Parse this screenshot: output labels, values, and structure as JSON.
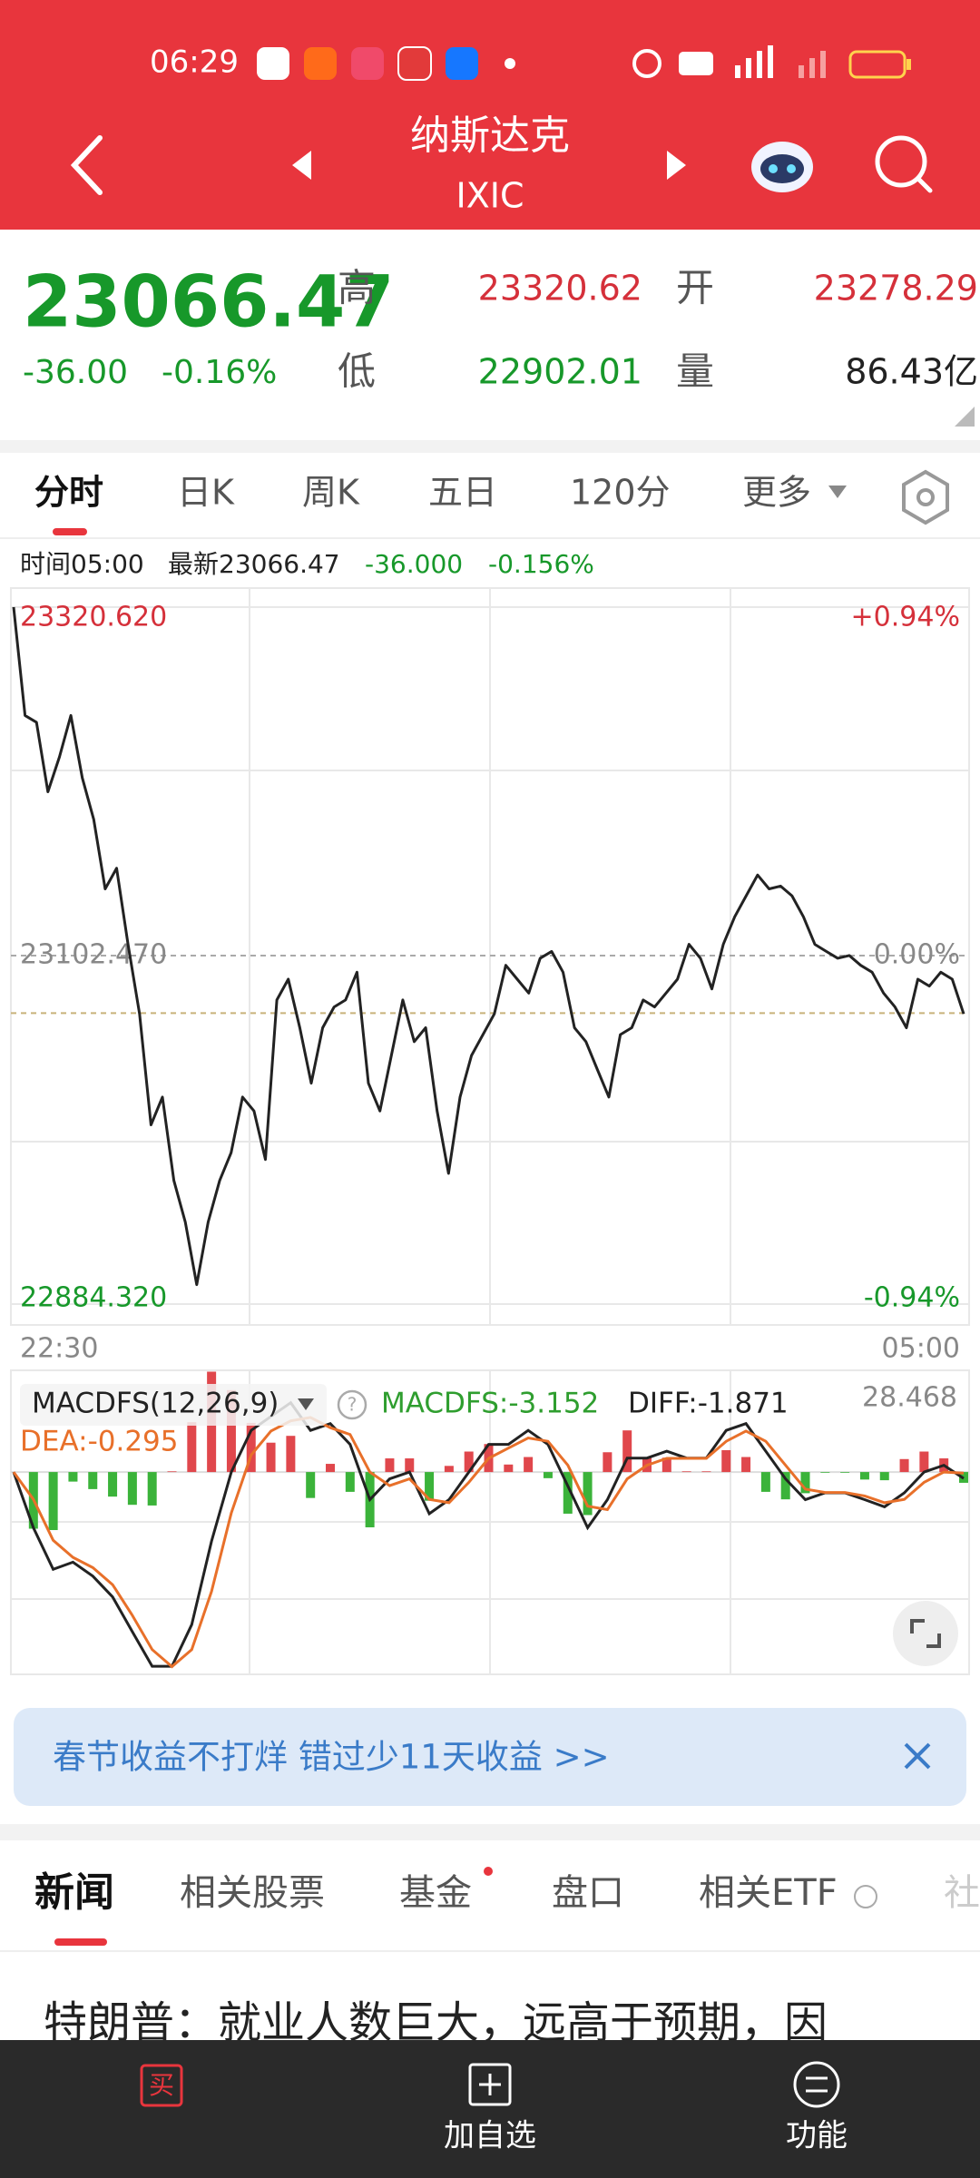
{
  "status_bar": {
    "time": "06:29"
  },
  "header": {
    "title": "纳斯达克",
    "subtitle": "IXIC"
  },
  "quote": {
    "price": "23066.47",
    "change": "-36.00",
    "change_pct": "-0.16%",
    "high_label": "高",
    "high": "23320.62",
    "open_label": "开",
    "open": "23278.29",
    "low_label": "低",
    "low": "22902.01",
    "volume_label": "量",
    "volume": "86.43亿"
  },
  "tabs": [
    "分时",
    "日K",
    "周K",
    "五日",
    "120分",
    "更多"
  ],
  "info": {
    "time": "时间05:00",
    "latest": "最新23066.47",
    "change": "-36.000",
    "change_pct": "-0.156%"
  },
  "chart_data": [
    {
      "type": "line",
      "color": "#222222",
      "ylim": [
        22884.32,
        23320.62
      ],
      "yticks": [
        {
          "value": 22884.32,
          "label": "22884.320"
        },
        {
          "value": 23102.47,
          "label": "23102.470"
        },
        {
          "value": 23320.62,
          "label": "23320.620"
        }
      ],
      "pct_labels": [
        "-0.94%",
        "0.00%",
        "+0.94%"
      ],
      "x_labels": [
        "22:30",
        "05:00"
      ],
      "values": [
        23320.6,
        23252.8,
        23248.5,
        23205.0,
        23226.8,
        23252.8,
        23213.7,
        23187.7,
        23144.2,
        23157.2,
        23109.5,
        23066.0,
        22996.5,
        23013.9,
        22961.7,
        22935.7,
        22896.5,
        22935.7,
        22961.7,
        22979.1,
        23013.9,
        23005.2,
        22974.8,
        23074.7,
        23087.7,
        23057.3,
        23022.6,
        23057.3,
        23070.3,
        23074.7,
        23092.1,
        23022.6,
        23005.2,
        23039.9,
        23074.7,
        23048.6,
        23057.3,
        23005.2,
        22966.1,
        23013.9,
        23039.9,
        23053.0,
        23066.0,
        23096.4,
        23087.7,
        23079.0,
        23100.8,
        23105.1,
        23092.1,
        23057.3,
        23048.6,
        23031.2,
        23013.9,
        23053.0,
        23057.3,
        23074.7,
        23070.3,
        23079.0,
        23087.7,
        23109.5,
        23100.8,
        23081.6,
        23109.5,
        23126.8,
        23139.9,
        23152.9,
        23144.2,
        23146.0,
        23139.9,
        23126.8,
        23109.5,
        23105.1,
        23100.8,
        23102.5,
        23096.4,
        23092.1,
        23079.0,
        23070.3,
        23057.3,
        23087.7,
        23083.4,
        23092.1,
        23087.7,
        23066.0
      ]
    },
    {
      "type": "macd",
      "indicator": "MACDFS(12,26,9)",
      "ylim": [
        -59,
        28.468
      ],
      "yticks": [
        28.468
      ],
      "series": [
        {
          "label": "DIFF:-1.871",
          "color": "#222222",
          "values": [
            0,
            -16.3,
            -28.5,
            -26.4,
            -30.5,
            -36.6,
            -46.8,
            -56.9,
            -56.9,
            -44.7,
            -20.3,
            0,
            12.2,
            16.3,
            20.3,
            12.2,
            14.2,
            8.1,
            -8.1,
            -2.0,
            0,
            -12.2,
            -8.1,
            0,
            8.1,
            8.1,
            12.2,
            8.1,
            -4.1,
            -16.3,
            -8.1,
            4.1,
            4.1,
            6.1,
            4.1,
            4.1,
            12.2,
            14.2,
            6.1,
            -2.0,
            -8.1,
            -6.1,
            -6.1,
            -8.1,
            -10.2,
            -6.1,
            0,
            2.0,
            -1.871
          ]
        },
        {
          "label": "DEA:-0.295",
          "color": "#e8702a",
          "values": [
            0,
            -8,
            -20,
            -25,
            -28,
            -33,
            -42,
            -52,
            -57,
            -52,
            -35,
            -12,
            5,
            12,
            15,
            16,
            13,
            11,
            0,
            -4,
            -2,
            -8,
            -9,
            -3,
            4,
            7,
            10,
            9,
            2,
            -10,
            -11,
            -2,
            2,
            4,
            4,
            4,
            9,
            12,
            9,
            2,
            -5,
            -6,
            -6,
            -7,
            -9,
            -8,
            -3,
            0,
            -0.295
          ]
        },
        {
          "label": "MACDFS:-3.152",
          "color": "#2f9e2f",
          "color_up": "#e0474c",
          "color_down": "#3bb33a",
          "values": [
            0,
            -16.6,
            -17,
            -2.8,
            -5,
            -7.2,
            -9.6,
            -9.8,
            0.2,
            14.6,
            29.4,
            24,
            14.4,
            8.6,
            10.6,
            -7.6,
            2.4,
            -5.8,
            -16.2,
            4,
            4,
            -8.4,
            1.8,
            6,
            8.2,
            2.2,
            4.4,
            -1.8,
            -12.2,
            -12.6,
            5.8,
            12.2,
            4.2,
            4.2,
            0.2,
            0.2,
            6.4,
            4.4,
            -5.8,
            -8,
            -6.2,
            -0.2,
            -0.2,
            -2.2,
            -2.4,
            3.8,
            6,
            4,
            -3.152
          ]
        }
      ]
    }
  ],
  "banner": {
    "text": "春节收益不打烊 错过少11天收益 >>"
  },
  "news_tabs": [
    "新闻",
    "相关股票",
    "基金",
    "盘口",
    "相关ETF",
    "社"
  ],
  "headline": "特朗普：就业人数巨大，远高于预期，因",
  "bottom_bar": {
    "buy": "买",
    "watchlist": "加自选",
    "functions": "功能"
  }
}
